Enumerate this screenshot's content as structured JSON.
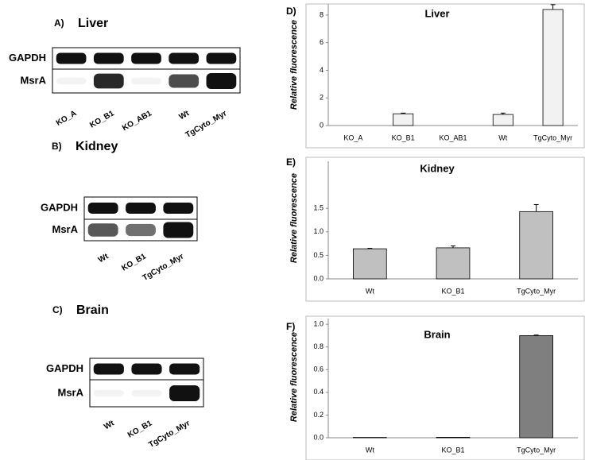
{
  "blots": [
    {
      "label": "A)",
      "tissue": "Liver",
      "rows": [
        "GAPDH",
        "MsrA"
      ],
      "lanes": [
        "KO_A",
        "KO_B1",
        "KO_AB1",
        "Wt",
        "TgCyto_Myr"
      ]
    },
    {
      "label": "B)",
      "tissue": "Kidney",
      "rows": [
        "GAPDH",
        "MsrA"
      ],
      "lanes": [
        "Wt",
        "KO_B1",
        "TgCyto_Myr"
      ]
    },
    {
      "label": "C)",
      "tissue": "Brain",
      "rows": [
        "GAPDH",
        "MsrA"
      ],
      "lanes": [
        "Wt",
        "KO_B1",
        "TgCyto_Myr"
      ]
    }
  ],
  "chart_data": [
    {
      "type": "bar",
      "panel": "D)",
      "title": "Liver",
      "ylabel": "Relative fluorescence",
      "categories": [
        "KO_A",
        "KO_B1",
        "KO_AB1",
        "Wt",
        "TgCyto_Myr"
      ],
      "values": [
        0,
        0.85,
        0,
        0.8,
        8.4
      ],
      "errors": [
        0,
        0.05,
        0,
        0.1,
        0.35
      ],
      "color": "#f2f2f2",
      "ylim": [
        0,
        8.8
      ],
      "yticks": [
        0,
        2,
        4,
        6,
        8
      ]
    },
    {
      "type": "bar",
      "panel": "E)",
      "title": "Kidney",
      "ylabel": "Relative fluorescence",
      "categories": [
        "Wt",
        "KO_B1",
        "TgCyto_Myr"
      ],
      "values": [
        0.64,
        0.66,
        1.43
      ],
      "errors": [
        0.01,
        0.04,
        0.15
      ],
      "color": "#c0c0c0",
      "ylim": [
        0,
        2.5
      ],
      "yticks": [
        {
          "value": 0,
          "label": "0.0"
        },
        {
          "value": 0.5,
          "label": "0.5"
        },
        {
          "value": 1,
          "label": "1.0"
        },
        {
          "value": 1.5,
          "label": "1.5"
        }
      ]
    },
    {
      "type": "bar",
      "panel": "F)",
      "title": "Brain",
      "ylabel": "Relative fluorescence",
      "categories": [
        "Wt",
        "KO_B1",
        "TgCyto_Myr"
      ],
      "values": [
        0.003,
        0.004,
        0.9
      ],
      "errors": [
        0,
        0,
        0.005
      ],
      "color": "#7f7f7f",
      "ylim": [
        0,
        1.05
      ],
      "yticks": [
        {
          "value": 0,
          "label": "0.0"
        },
        {
          "value": 0.2,
          "label": "0.2"
        },
        {
          "value": 0.4,
          "label": "0.4"
        },
        {
          "value": 0.6,
          "label": "0.6"
        },
        {
          "value": 0.8,
          "label": "0.8"
        },
        {
          "value": 1,
          "label": "1.0"
        }
      ]
    }
  ]
}
